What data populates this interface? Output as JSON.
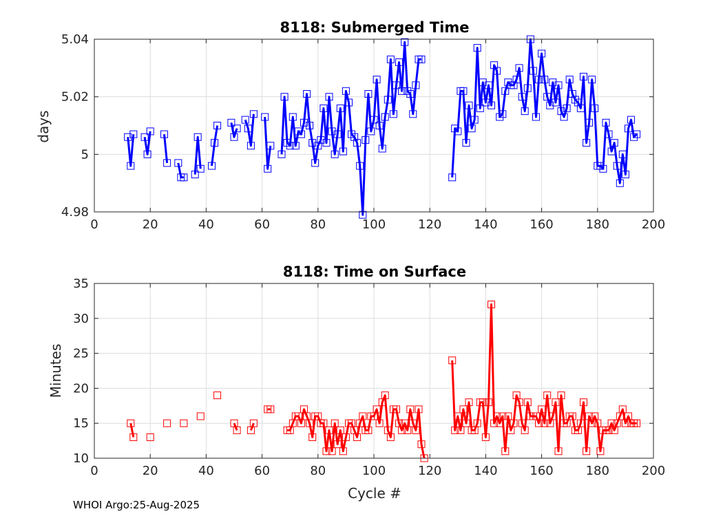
{
  "footer": "WHOI Argo:25-Aug-2025",
  "chart_data": [
    {
      "type": "line",
      "title": "8118: Submerged Time",
      "xlabel": "",
      "ylabel": "days",
      "xlim": [
        0,
        200
      ],
      "ylim": [
        4.98,
        5.04
      ],
      "xticks": [
        0,
        20,
        40,
        60,
        80,
        100,
        120,
        140,
        160,
        180,
        200
      ],
      "xtick_labels": [
        "0",
        "20",
        "40",
        "60",
        "80",
        "100",
        "120",
        "140",
        "160",
        "180",
        "200"
      ],
      "yticks": [
        4.98,
        5.0,
        5.02,
        5.04
      ],
      "ytick_labels": [
        "4.98",
        "5",
        "5.02",
        "5.04"
      ],
      "color": "#0000ff",
      "marker": "square",
      "segments": [
        [
          [
            12,
            5.006
          ],
          [
            13,
            4.996
          ],
          [
            14,
            5.007
          ]
        ],
        [
          [
            18,
            5.006
          ],
          [
            19,
            5.0
          ],
          [
            20,
            5.008
          ]
        ],
        [
          [
            25,
            5.007
          ],
          [
            26,
            4.997
          ]
        ],
        [
          [
            30,
            4.997
          ],
          [
            31,
            4.992
          ],
          [
            32,
            4.992
          ]
        ],
        [
          [
            36,
            4.993
          ],
          [
            37,
            5.006
          ],
          [
            38,
            4.995
          ]
        ],
        [
          [
            42,
            4.996
          ],
          [
            43,
            5.004
          ],
          [
            44,
            5.01
          ]
        ],
        [
          [
            49,
            5.011
          ],
          [
            50,
            5.006
          ],
          [
            51,
            5.009
          ]
        ],
        [
          [
            54,
            5.012
          ],
          [
            55,
            5.009
          ],
          [
            56,
            5.003
          ],
          [
            57,
            5.014
          ]
        ],
        [
          [
            61,
            5.013
          ],
          [
            62,
            4.995
          ],
          [
            63,
            5.003
          ]
        ],
        [
          [
            67,
            5.0
          ],
          [
            68,
            5.02
          ],
          [
            69,
            5.004
          ],
          [
            70,
            5.003
          ],
          [
            71,
            5.013
          ],
          [
            72,
            5.003
          ],
          [
            73,
            5.008
          ],
          [
            74,
            5.007
          ],
          [
            75,
            5.011
          ],
          [
            76,
            5.021
          ],
          [
            77,
            5.01
          ],
          [
            78,
            5.004
          ],
          [
            79,
            4.997
          ],
          [
            80,
            5.003
          ],
          [
            81,
            5.005
          ],
          [
            82,
            5.016
          ],
          [
            83,
            5.004
          ],
          [
            84,
            5.02
          ],
          [
            85,
            5.008
          ],
          [
            86,
            5.0
          ],
          [
            87,
            5.007
          ],
          [
            88,
            5.016
          ],
          [
            89,
            5.001
          ],
          [
            90,
            5.022
          ],
          [
            91,
            5.018
          ],
          [
            92,
            5.007
          ],
          [
            93,
            5.006
          ],
          [
            94,
            5.004
          ],
          [
            95,
            4.996
          ],
          [
            96,
            4.979
          ],
          [
            97,
            5.005
          ],
          [
            98,
            5.021
          ],
          [
            99,
            5.008
          ],
          [
            100,
            5.012
          ],
          [
            101,
            5.026
          ],
          [
            102,
            5.01
          ],
          [
            103,
            5.002
          ],
          [
            104,
            5.013
          ],
          [
            105,
            5.019
          ],
          [
            106,
            5.033
          ],
          [
            107,
            5.014
          ],
          [
            108,
            5.024
          ],
          [
            109,
            5.032
          ],
          [
            110,
            5.022
          ],
          [
            111,
            5.039
          ],
          [
            112,
            5.022
          ],
          [
            113,
            5.021
          ],
          [
            114,
            5.014
          ],
          [
            115,
            5.024
          ],
          [
            116,
            5.033
          ],
          [
            117,
            5.033
          ]
        ],
        [
          [
            128,
            4.992
          ],
          [
            129,
            5.009
          ],
          [
            130,
            5.008
          ],
          [
            131,
            5.022
          ],
          [
            132,
            5.022
          ],
          [
            133,
            5.004
          ],
          [
            134,
            5.017
          ],
          [
            135,
            5.009
          ],
          [
            136,
            5.012
          ],
          [
            137,
            5.037
          ],
          [
            138,
            5.016
          ],
          [
            139,
            5.025
          ],
          [
            140,
            5.018
          ],
          [
            141,
            5.024
          ],
          [
            142,
            5.017
          ],
          [
            143,
            5.031
          ],
          [
            144,
            5.029
          ],
          [
            145,
            5.013
          ],
          [
            146,
            5.014
          ],
          [
            147,
            5.022
          ],
          [
            148,
            5.025
          ],
          [
            149,
            5.024
          ],
          [
            150,
            5.024
          ],
          [
            151,
            5.026
          ],
          [
            152,
            5.03
          ],
          [
            153,
            5.02
          ],
          [
            154,
            5.015
          ],
          [
            155,
            5.023
          ],
          [
            156,
            5.04
          ],
          [
            157,
            5.029
          ],
          [
            158,
            5.013
          ],
          [
            159,
            5.026
          ],
          [
            160,
            5.035
          ],
          [
            161,
            5.026
          ],
          [
            162,
            5.02
          ],
          [
            163,
            5.017
          ],
          [
            164,
            5.025
          ],
          [
            165,
            5.018
          ],
          [
            166,
            5.024
          ],
          [
            167,
            5.015
          ],
          [
            168,
            5.013
          ],
          [
            169,
            5.016
          ],
          [
            170,
            5.026
          ],
          [
            171,
            5.021
          ],
          [
            172,
            5.019
          ],
          [
            173,
            5.018
          ],
          [
            174,
            5.016
          ],
          [
            175,
            5.027
          ],
          [
            176,
            5.004
          ],
          [
            177,
            5.011
          ],
          [
            178,
            5.026
          ],
          [
            179,
            5.016
          ],
          [
            180,
            4.996
          ],
          [
            181,
            4.996
          ],
          [
            182,
            4.995
          ],
          [
            183,
            5.011
          ],
          [
            184,
            5.007
          ],
          [
            185,
            5.001
          ],
          [
            186,
            5.004
          ],
          [
            187,
            4.996
          ],
          [
            188,
            4.99
          ],
          [
            189,
            5.0
          ],
          [
            190,
            4.993
          ],
          [
            191,
            5.009
          ],
          [
            192,
            5.012
          ],
          [
            193,
            5.006
          ],
          [
            194,
            5.007
          ]
        ]
      ]
    },
    {
      "type": "line",
      "title": "8118: Time on Surface",
      "xlabel": "Cycle #",
      "ylabel": "Minutes",
      "xlim": [
        0,
        200
      ],
      "ylim": [
        10,
        35
      ],
      "xticks": [
        0,
        20,
        40,
        60,
        80,
        100,
        120,
        140,
        160,
        180,
        200
      ],
      "xtick_labels": [
        "0",
        "20",
        "40",
        "60",
        "80",
        "100",
        "120",
        "140",
        "160",
        "180",
        "200"
      ],
      "yticks": [
        10,
        15,
        20,
        25,
        30,
        35
      ],
      "ytick_labels": [
        "10",
        "15",
        "20",
        "25",
        "30",
        "35"
      ],
      "color": "#ff0000",
      "marker": "square",
      "segments": [
        [
          [
            13,
            15
          ],
          [
            14,
            13
          ]
        ],
        [
          [
            20,
            13
          ]
        ],
        [
          [
            26,
            15
          ]
        ],
        [
          [
            32,
            15
          ]
        ],
        [
          [
            38,
            16
          ]
        ],
        [
          [
            44,
            19
          ]
        ],
        [
          [
            50,
            15
          ],
          [
            51,
            14
          ]
        ],
        [
          [
            56,
            14
          ],
          [
            57,
            15
          ]
        ],
        [
          [
            62,
            17
          ],
          [
            63,
            17
          ]
        ],
        [
          [
            69,
            14
          ],
          [
            70,
            14
          ],
          [
            71,
            15
          ],
          [
            72,
            16
          ],
          [
            73,
            16
          ],
          [
            74,
            15
          ],
          [
            75,
            17
          ],
          [
            76,
            16
          ],
          [
            77,
            15
          ],
          [
            78,
            13
          ],
          [
            79,
            16
          ],
          [
            80,
            16
          ],
          [
            81,
            15
          ],
          [
            82,
            15
          ],
          [
            83,
            11
          ],
          [
            84,
            14
          ],
          [
            85,
            11
          ],
          [
            86,
            15
          ],
          [
            87,
            12
          ],
          [
            88,
            14
          ],
          [
            89,
            11
          ],
          [
            90,
            13
          ],
          [
            91,
            15
          ],
          [
            92,
            15
          ],
          [
            93,
            14
          ],
          [
            94,
            13
          ],
          [
            95,
            15
          ],
          [
            96,
            16
          ],
          [
            97,
            14
          ],
          [
            98,
            14
          ],
          [
            99,
            16
          ],
          [
            100,
            16
          ],
          [
            101,
            17
          ],
          [
            102,
            15
          ],
          [
            103,
            18
          ],
          [
            104,
            19
          ],
          [
            105,
            14
          ],
          [
            106,
            13
          ],
          [
            107,
            17
          ],
          [
            108,
            17
          ],
          [
            109,
            15
          ],
          [
            110,
            14
          ],
          [
            111,
            15
          ],
          [
            112,
            14
          ],
          [
            113,
            17
          ],
          [
            114,
            15
          ],
          [
            115,
            14
          ],
          [
            116,
            17
          ],
          [
            117,
            12
          ],
          [
            118,
            10
          ]
        ],
        [
          [
            128,
            24
          ],
          [
            129,
            14
          ],
          [
            130,
            16
          ],
          [
            131,
            14
          ],
          [
            132,
            17
          ],
          [
            133,
            15
          ],
          [
            134,
            18
          ],
          [
            135,
            14
          ],
          [
            136,
            14
          ],
          [
            137,
            15
          ],
          [
            138,
            18
          ],
          [
            139,
            18
          ],
          [
            140,
            13
          ],
          [
            141,
            18
          ],
          [
            142,
            32
          ],
          [
            143,
            15
          ],
          [
            144,
            16
          ],
          [
            145,
            15
          ],
          [
            146,
            16
          ],
          [
            147,
            11
          ],
          [
            148,
            16
          ],
          [
            149,
            14
          ],
          [
            150,
            15
          ],
          [
            151,
            19
          ],
          [
            152,
            18
          ],
          [
            153,
            15
          ],
          [
            154,
            14
          ],
          [
            155,
            18
          ],
          [
            156,
            16
          ],
          [
            157,
            16
          ],
          [
            158,
            16
          ],
          [
            159,
            15
          ],
          [
            160,
            17
          ],
          [
            161,
            15
          ],
          [
            162,
            19
          ],
          [
            163,
            15
          ],
          [
            164,
            16
          ],
          [
            165,
            18
          ],
          [
            166,
            11
          ],
          [
            167,
            19
          ],
          [
            168,
            15
          ],
          [
            169,
            15
          ],
          [
            170,
            16
          ],
          [
            171,
            16
          ],
          [
            172,
            14
          ],
          [
            173,
            14
          ],
          [
            174,
            15
          ],
          [
            175,
            18
          ],
          [
            176,
            11
          ],
          [
            177,
            16
          ],
          [
            178,
            15
          ],
          [
            179,
            16
          ],
          [
            180,
            15
          ],
          [
            181,
            11
          ],
          [
            182,
            14
          ],
          [
            183,
            14
          ],
          [
            184,
            14
          ],
          [
            185,
            15
          ],
          [
            186,
            14
          ],
          [
            187,
            15
          ],
          [
            188,
            16
          ],
          [
            189,
            17
          ],
          [
            190,
            15
          ],
          [
            191,
            16
          ],
          [
            192,
            15
          ],
          [
            193,
            15
          ],
          [
            194,
            15
          ]
        ]
      ]
    }
  ]
}
